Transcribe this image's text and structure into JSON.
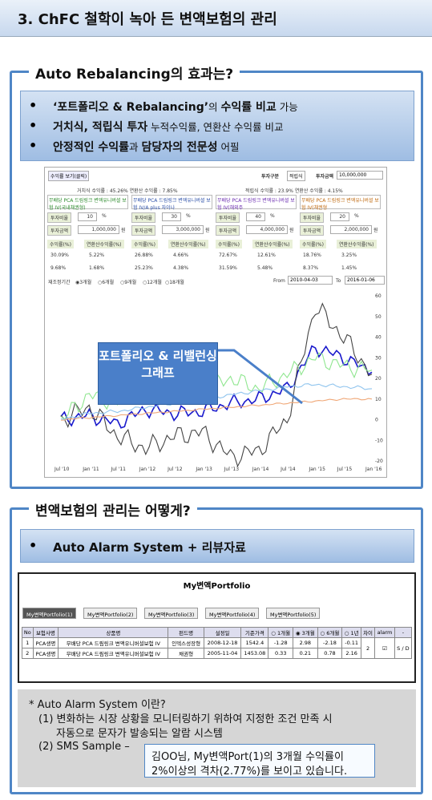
{
  "header": {
    "title": "3. ChFC 철학이 녹아 든 변액보험의 관리"
  },
  "section1": {
    "heading": "Auto Rebalancing의 효과는?",
    "bullets": [
      {
        "b1": "‘포트폴리오 & Rebalancing’",
        "t1": "의 ",
        "b2": "수익률 비교",
        "t2": " 가능"
      },
      {
        "b1": "거치식, 적립식 투자",
        "t1": " 누적수익률, 연환산 수익률 비교"
      },
      {
        "b1": "안정적인 수익률",
        "t1": "과 ",
        "b2": "담당자의 전문성",
        "t2": " 어필"
      }
    ]
  },
  "sim": {
    "btn": "수익률 보기(클릭)",
    "invest_type_label": "투자구분",
    "invest_type_value": "적립식",
    "invest_amount_label": "투자금액",
    "invest_amount_value": "10,000,000",
    "lump_summary": "거치식 수익률 : 45.26%  연환산 수익률 : 7.85%",
    "install_summary": "적립식 수익률 : 23.9%  연환산 수익률 : 4.15%",
    "funds": [
      {
        "name": "무배당 PCA 드림링크 변액유니버셜 보험 IV(국내채권형)",
        "ratio": "10",
        "amount": "1,000,000",
        "r1": "30.09%",
        "r2": "5.22%",
        "r3": "9.68%",
        "r4": "1.68%"
      },
      {
        "name": "무배당 PCA 드림링크 변액유니버셜 보험 IV/A plus 자이나",
        "ratio": "30",
        "amount": "3,000,000",
        "r1": "26.88%",
        "r2": "4.66%",
        "r3": "25.23%",
        "r4": "4.38%"
      },
      {
        "name": "무배당 PCA 드림링크 변액유니버셜 보험 IV(해외주",
        "ratio": "40",
        "amount": "4,000,000",
        "r1": "72.67%",
        "r2": "12.61%",
        "r3": "31.59%",
        "r4": "5.48%"
      },
      {
        "name": "무배당 PCA 드림링크 변액유니버셜 보험 IV(채권형",
        "ratio": "20",
        "amount": "2,000,000",
        "r1": "18.76%",
        "r2": "3.25%",
        "r3": "8.37%",
        "r4": "1.45%"
      }
    ],
    "ratio_label": "투자비율",
    "amount_label": "투자금액",
    "pct": "%",
    "won": "원",
    "ret_label": "수익률(%)",
    "ann_label": "연환산수익률(%)",
    "period_label": "재조정기간",
    "period_options": [
      "3개월",
      "6개월",
      "9개월",
      "12개월",
      "18개월"
    ],
    "from_label": "From",
    "from_value": "2010-04-03",
    "to_label": "To",
    "to_value": "2016-01-06",
    "callout": "포트폴리오 & 리밸런싱 그래프"
  },
  "chart_data": {
    "type": "line",
    "x_ticks": [
      "Jul '10",
      "Jan '11",
      "Jul '11",
      "Jan '12",
      "Jul '12",
      "Jan '13",
      "Jul '13",
      "Jan '14",
      "Jul '14",
      "Jan '15",
      "Jul '15",
      "Jan '16"
    ],
    "y_ticks": [
      60,
      50,
      40,
      30,
      20,
      10,
      0,
      -10,
      -20
    ],
    "ylim": [
      -20,
      60
    ],
    "series": [
      {
        "color": "#1a1acc",
        "values": [
          0,
          2,
          -2,
          5,
          3,
          4,
          8,
          10,
          15,
          35,
          30,
          23
        ]
      },
      {
        "color": "#444444",
        "values": [
          0,
          6,
          -8,
          -14,
          -8,
          -6,
          -18,
          -15,
          0,
          55,
          40,
          22
        ]
      },
      {
        "color": "#8fe68f",
        "values": [
          0,
          12,
          8,
          18,
          12,
          16,
          20,
          15,
          22,
          30,
          26,
          24
        ]
      },
      {
        "color": "#8fc4ee",
        "values": [
          0,
          3,
          4,
          6,
          8,
          10,
          12,
          14,
          16,
          17,
          16,
          15
        ]
      },
      {
        "color": "#f0a878",
        "values": [
          0,
          1,
          2,
          3,
          4,
          5,
          6,
          7,
          8,
          9,
          10,
          10
        ]
      }
    ]
  },
  "section2": {
    "heading": "변액보험의 관리는 어떻게?",
    "bullet": "Auto Alarm System + 리뷰자료"
  },
  "portfolio": {
    "title": "My변액Portfolio",
    "tabs": [
      "My변액Portfolio(1)",
      "My변액Portfolio(2)",
      "My변액Portfolio(3)",
      "My변액Portfolio(4)",
      "My변액Portfolio(5)"
    ],
    "headers": [
      "No",
      "보험사명",
      "상품명",
      "펀드명",
      "설정일",
      "기준가격",
      "1개월",
      "3개월",
      "6개월",
      "1년",
      "차이",
      "alarm",
      "-"
    ],
    "rows": [
      [
        "1",
        "PCA생명",
        "무배당 PCA 드림링크 변액유니버셜보험 IV",
        "인덱스성장형",
        "2008-12-18",
        "1542.4",
        "-1.28",
        "2.98",
        "-2.18",
        "-0.11"
      ],
      [
        "2",
        "PCA생명",
        "무배당 PCA 드림링크 변액유니버셜보험 IV",
        "채권형",
        "2005-11-04",
        "1453.08",
        "0.33",
        "0.21",
        "0.78",
        "2.16"
      ]
    ],
    "diff_value": "2",
    "alarm_mark": "☑",
    "action": "S / D"
  },
  "note": {
    "title": "* Auto Alarm System 이란?",
    "item1a": "(1) 변화하는 시장 상황을 모니터링하기 위하여 지정한 조건 만족 시",
    "item1b": "자동으로 문자가 발송되는 알람 시스템",
    "item2": "(2) SMS Sample –",
    "sms1": "김OO님, My변액Port(1)의 3개월 수익률이",
    "sms2": "2%이상의 격차(2.77%)를 보이고 있습니다."
  }
}
